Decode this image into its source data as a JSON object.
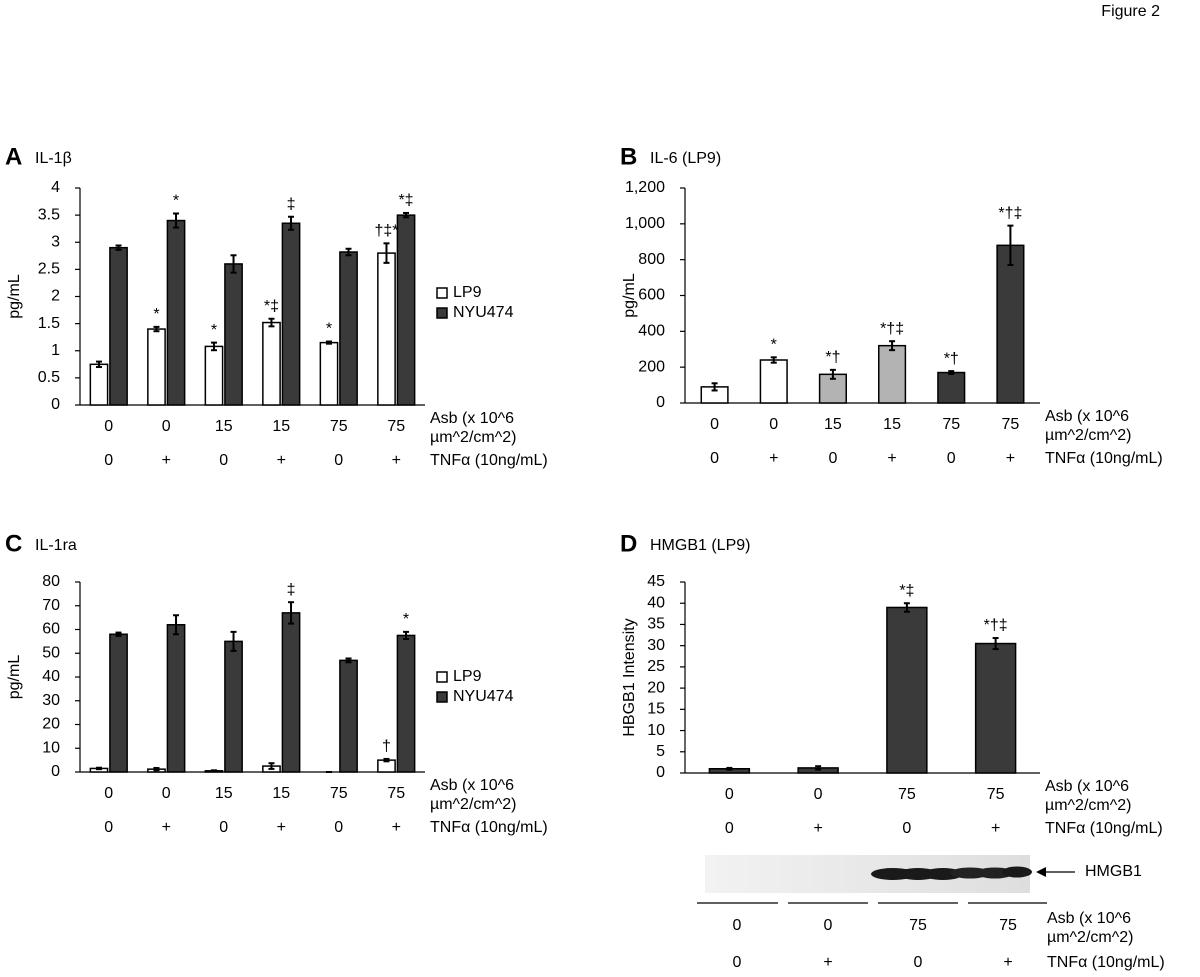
{
  "figure_label": "Figure 2",
  "chart_data": [
    {
      "type": "bar",
      "panel": "A",
      "title": "IL-1β",
      "ylabel": "pg/mL",
      "categories": [
        "0",
        "0",
        "15",
        "15",
        "75",
        "75"
      ],
      "tnf": [
        "0",
        "+",
        "0",
        "+",
        "0",
        "+"
      ],
      "asb_label": [
        "Asb (x 10^6",
        "µm^2/cm^2)"
      ],
      "tnf_label": "TNFα (10ng/mL)",
      "ylim": [
        0,
        4
      ],
      "yticks": [
        0,
        0.5,
        1,
        1.5,
        2,
        2.5,
        3,
        3.5,
        4
      ],
      "legend": "right",
      "series": [
        {
          "name": "LP9",
          "color": "#ffffff",
          "values": [
            0.75,
            1.4,
            1.08,
            1.52,
            1.15,
            2.8
          ],
          "errors": [
            0.05,
            0.04,
            0.07,
            0.07,
            0.02,
            0.18
          ],
          "annotations": [
            null,
            "*",
            "*",
            "*‡",
            "*",
            "†‡*"
          ]
        },
        {
          "name": "NYU474",
          "color": "#3a3a3a",
          "values": [
            2.9,
            3.4,
            2.6,
            3.35,
            2.82,
            3.5
          ],
          "errors": [
            0.04,
            0.13,
            0.16,
            0.12,
            0.06,
            0.04
          ],
          "annotations": [
            null,
            "*",
            null,
            "‡",
            null,
            "*‡"
          ]
        }
      ]
    },
    {
      "type": "bar",
      "panel": "B",
      "title": "IL-6 (LP9)",
      "ylabel": "pg/mL",
      "categories": [
        "0",
        "0",
        "15",
        "15",
        "75",
        "75"
      ],
      "tnf": [
        "0",
        "+",
        "0",
        "+",
        "0",
        "+"
      ],
      "asb_label": [
        "Asb (x 10^6",
        "µm^2/cm^2)"
      ],
      "tnf_label": "TNFα (10ng/mL)",
      "ylim": [
        0,
        1200
      ],
      "yticks": [
        0,
        200,
        400,
        600,
        800,
        {
          "value": 1000,
          "label": "1,000"
        },
        {
          "value": 1200,
          "label": "1,200"
        }
      ],
      "values": [
        90,
        240,
        160,
        320,
        170,
        880
      ],
      "errors": [
        20,
        15,
        25,
        25,
        8,
        110
      ],
      "colors": [
        "#ffffff",
        "#ffffff",
        "#b3b3b3",
        "#b3b3b3",
        "#3a3a3a",
        "#3a3a3a"
      ],
      "annotations": [
        null,
        "*",
        "*†",
        "*†‡",
        "*†",
        "*†‡"
      ]
    },
    {
      "type": "bar",
      "panel": "C",
      "title": "IL-1ra",
      "ylabel": "pg/mL",
      "categories": [
        "0",
        "0",
        "15",
        "15",
        "75",
        "75"
      ],
      "tnf": [
        "0",
        "+",
        "0",
        "+",
        "0",
        "+"
      ],
      "asb_label": [
        "Asb (x 10^6",
        "µm^2/cm^2)"
      ],
      "tnf_label": "TNFα (10ng/mL)",
      "ylim": [
        0,
        80
      ],
      "yticks": [
        0,
        10,
        20,
        30,
        40,
        50,
        60,
        70,
        80
      ],
      "legend": "right",
      "series": [
        {
          "name": "LP9",
          "color": "#ffffff",
          "values": [
            1.5,
            1.2,
            0.5,
            2.5,
            0,
            5
          ],
          "errors": [
            0.3,
            0.5,
            0.2,
            1.2,
            0,
            0.5
          ],
          "annotations": [
            null,
            null,
            null,
            null,
            null,
            "†"
          ]
        },
        {
          "name": "NYU474",
          "color": "#3a3a3a",
          "values": [
            58,
            62,
            55,
            67,
            47,
            57.5
          ],
          "errors": [
            0.7,
            4,
            4,
            4.5,
            0.8,
            1.5
          ],
          "annotations": [
            null,
            null,
            null,
            "‡",
            null,
            "*"
          ]
        }
      ]
    },
    {
      "type": "bar",
      "panel": "D",
      "title": "HMGB1 (LP9)",
      "ylabel": "HBGB1 Intensity",
      "categories": [
        "0",
        "0",
        "75",
        "75"
      ],
      "tnf": [
        "0",
        "+",
        "0",
        "+"
      ],
      "asb_label": [
        "Asb (x 10^6",
        "µm^2/cm^2)"
      ],
      "tnf_label": "TNFα (10ng/mL)",
      "ylim": [
        0,
        45
      ],
      "yticks": [
        0,
        5,
        10,
        15,
        20,
        25,
        30,
        35,
        40,
        45
      ],
      "values": [
        1,
        1.2,
        39,
        30.5
      ],
      "errors": [
        0.2,
        0.4,
        1,
        1.3
      ],
      "colors": [
        "#3a3a3a",
        "#3a3a3a",
        "#3a3a3a",
        "#3a3a3a"
      ],
      "annotations": [
        null,
        null,
        "*‡",
        "*†‡"
      ],
      "blot": {
        "label": "HMGB1",
        "categories": [
          "0",
          "0",
          "75",
          "75"
        ],
        "tnf": [
          "0",
          "+",
          "0",
          "+"
        ]
      }
    }
  ]
}
